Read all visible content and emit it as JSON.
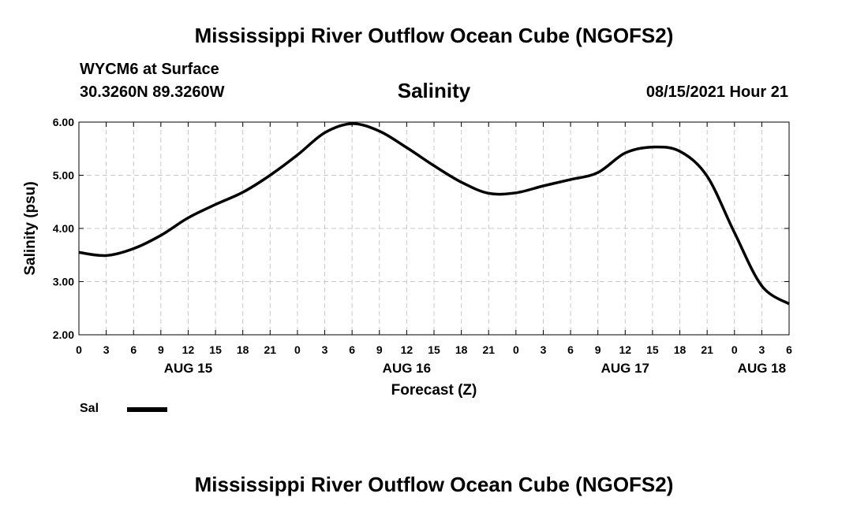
{
  "header": {
    "title_top": "Mississippi River Outflow Ocean Cube (NGOFS2)",
    "title_bottom": "Mississippi River Outflow Ocean Cube (NGOFS2)",
    "station": "WYCM6 at Surface",
    "coords": "30.3260N  89.3260W",
    "parameter": "Salinity",
    "datetime": "08/15/2021 Hour 21"
  },
  "legend": {
    "label": "Sal",
    "color": "#000000"
  },
  "chart_data": {
    "type": "line",
    "title": "Salinity",
    "xlabel": "Forecast (Z)",
    "ylabel": "Salinity (psu)",
    "ylim": [
      2.0,
      6.0
    ],
    "xlim_hours": [
      0,
      78
    ],
    "grid": true,
    "y_ticks": [
      "2.00",
      "3.00",
      "4.00",
      "5.00",
      "6.00"
    ],
    "x_tick_labels": [
      "0",
      "3",
      "6",
      "9",
      "12",
      "15",
      "18",
      "21",
      "0",
      "3",
      "6",
      "9",
      "12",
      "15",
      "18",
      "21",
      "0",
      "3",
      "6",
      "9",
      "12",
      "15",
      "18",
      "21",
      "0",
      "3",
      "6"
    ],
    "date_labels": [
      {
        "hour": 12,
        "label": "AUG 15"
      },
      {
        "hour": 36,
        "label": "AUG 16"
      },
      {
        "hour": 60,
        "label": "AUG 17"
      },
      {
        "hour": 75,
        "label": "AUG 18"
      }
    ],
    "series": [
      {
        "name": "Sal",
        "x": [
          0,
          3,
          6,
          9,
          12,
          15,
          18,
          21,
          24,
          27,
          30,
          33,
          36,
          39,
          42,
          45,
          48,
          51,
          54,
          57,
          60,
          63,
          66,
          69,
          72,
          75,
          78
        ],
        "values": [
          3.55,
          3.49,
          3.62,
          3.87,
          4.2,
          4.45,
          4.68,
          5.0,
          5.38,
          5.8,
          5.97,
          5.83,
          5.52,
          5.18,
          4.87,
          4.66,
          4.67,
          4.8,
          4.92,
          5.05,
          5.42,
          5.53,
          5.45,
          4.98,
          3.92,
          2.92,
          2.58
        ]
      }
    ]
  }
}
